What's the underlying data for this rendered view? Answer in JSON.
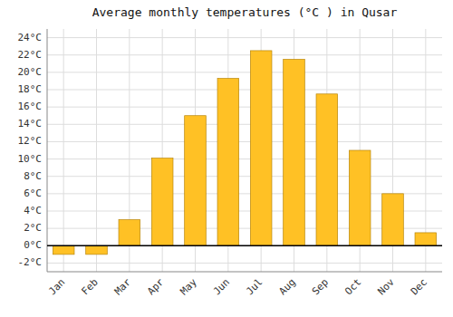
{
  "chart_data": {
    "type": "bar",
    "title": "Average monthly temperatures (°C ) in Qusar",
    "categories": [
      "Jan",
      "Feb",
      "Mar",
      "Apr",
      "May",
      "Jun",
      "Jul",
      "Aug",
      "Sep",
      "Oct",
      "Nov",
      "Dec"
    ],
    "values": [
      -1.0,
      -1.0,
      3.0,
      10.1,
      15.0,
      19.3,
      22.5,
      21.5,
      17.5,
      11.0,
      6.0,
      1.5
    ],
    "color": "#FFC125",
    "ylim": [
      -3,
      25
    ],
    "yticks": [
      {
        "value": -2,
        "label": "-2°C"
      },
      {
        "value": 0,
        "label": "0°C"
      },
      {
        "value": 2,
        "label": "2°C"
      },
      {
        "value": 4,
        "label": "4°C"
      },
      {
        "value": 6,
        "label": "6°C"
      },
      {
        "value": 8,
        "label": "8°C"
      },
      {
        "value": 10,
        "label": "10°C"
      },
      {
        "value": 12,
        "label": "12°C"
      },
      {
        "value": 14,
        "label": "14°C"
      },
      {
        "value": 16,
        "label": "16°C"
      },
      {
        "value": 18,
        "label": "18°C"
      },
      {
        "value": 20,
        "label": "20°C"
      },
      {
        "value": 22,
        "label": "22°C"
      },
      {
        "value": 24,
        "label": "24°C"
      }
    ],
    "grid": true
  }
}
